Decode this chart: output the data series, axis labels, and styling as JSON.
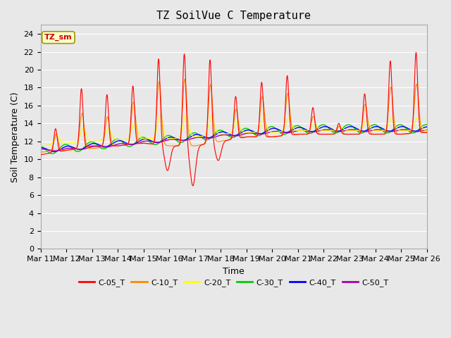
{
  "title": "TZ SoilVue C Temperature",
  "xlabel": "Time",
  "ylabel": "Soil Temperature (C)",
  "ylim": [
    0,
    25
  ],
  "yticks": [
    0,
    2,
    4,
    6,
    8,
    10,
    12,
    14,
    16,
    18,
    20,
    22,
    24
  ],
  "x_tick_labels": [
    "Mar 11",
    "Mar 12",
    "Mar 13",
    "Mar 14",
    "Mar 15",
    "Mar 16",
    "Mar 17",
    "Mar 18",
    "Mar 19",
    "Mar 20",
    "Mar 21",
    "Mar 22",
    "Mar 23",
    "Mar 24",
    "Mar 25",
    "Mar 26"
  ],
  "annotation_text": "TZ_sm",
  "annotation_color": "#cc0000",
  "annotation_bg": "#ffffcc",
  "background_color": "#e8e8e8",
  "grid_color": "#ffffff",
  "fig_bg": "#e8e8e8",
  "series": [
    {
      "label": "C-05_T",
      "color": "#ff0000"
    },
    {
      "label": "C-10_T",
      "color": "#ff8800"
    },
    {
      "label": "C-20_T",
      "color": "#ffff00"
    },
    {
      "label": "C-30_T",
      "color": "#00cc00"
    },
    {
      "label": "C-40_T",
      "color": "#0000ff"
    },
    {
      "label": "C-50_T",
      "color": "#aa00aa"
    }
  ]
}
